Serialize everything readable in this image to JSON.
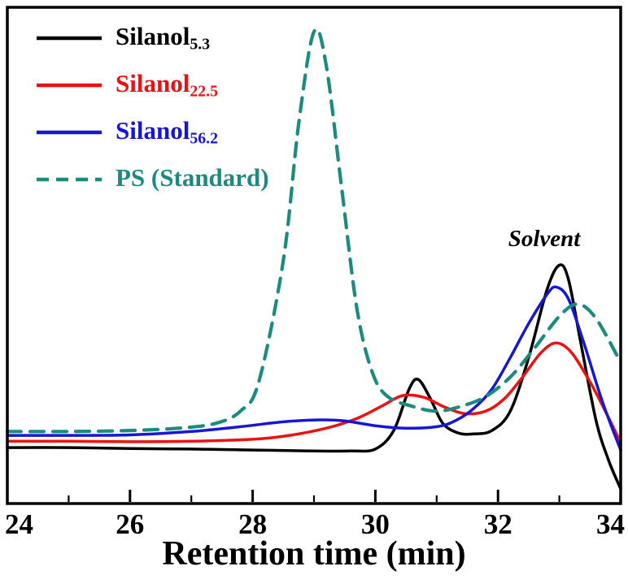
{
  "figure": {
    "background": "#ffffff",
    "frame_color": "#000000"
  },
  "chart_data": {
    "type": "line",
    "title": "",
    "xlabel": "Retention time (min)",
    "ylabel": "",
    "xlim": [
      24,
      34
    ],
    "ylim": [
      0,
      1.02
    ],
    "x_ticks": [
      24,
      26,
      28,
      30,
      32,
      34
    ],
    "x_minor_ticks": [
      25,
      27,
      29,
      31,
      33
    ],
    "grid": false,
    "legend_position": "top-left",
    "annotation": {
      "text": "Solvent",
      "x": 32.75,
      "y": 0.53
    },
    "series": [
      {
        "name": "Silanol",
        "subscript": "5.3",
        "color": "#000000",
        "style": "solid",
        "width": 3.5,
        "points": [
          [
            24,
            0.115
          ],
          [
            25,
            0.115
          ],
          [
            26,
            0.113
          ],
          [
            27,
            0.112
          ],
          [
            28,
            0.11
          ],
          [
            29,
            0.108
          ],
          [
            29.6,
            0.108
          ],
          [
            30.0,
            0.112
          ],
          [
            30.3,
            0.15
          ],
          [
            30.55,
            0.235
          ],
          [
            30.7,
            0.255
          ],
          [
            30.9,
            0.215
          ],
          [
            31.1,
            0.165
          ],
          [
            31.35,
            0.145
          ],
          [
            31.6,
            0.143
          ],
          [
            31.9,
            0.15
          ],
          [
            32.2,
            0.19
          ],
          [
            32.5,
            0.3
          ],
          [
            32.8,
            0.44
          ],
          [
            33.0,
            0.49
          ],
          [
            33.15,
            0.46
          ],
          [
            33.35,
            0.33
          ],
          [
            33.6,
            0.17
          ],
          [
            33.8,
            0.09
          ],
          [
            34,
            0.03
          ]
        ]
      },
      {
        "name": "Silanol",
        "subscript": "22.5",
        "color": "#ee1111",
        "style": "solid",
        "width": 3.5,
        "points": [
          [
            24,
            0.128
          ],
          [
            25,
            0.128
          ],
          [
            26,
            0.127
          ],
          [
            27,
            0.128
          ],
          [
            28,
            0.132
          ],
          [
            28.6,
            0.14
          ],
          [
            29.2,
            0.155
          ],
          [
            29.7,
            0.175
          ],
          [
            30.1,
            0.2
          ],
          [
            30.45,
            0.222
          ],
          [
            30.8,
            0.218
          ],
          [
            31.1,
            0.2
          ],
          [
            31.45,
            0.185
          ],
          [
            31.8,
            0.19
          ],
          [
            32.1,
            0.215
          ],
          [
            32.4,
            0.26
          ],
          [
            32.7,
            0.31
          ],
          [
            32.95,
            0.33
          ],
          [
            33.2,
            0.31
          ],
          [
            33.5,
            0.25
          ],
          [
            33.75,
            0.19
          ],
          [
            34,
            0.125
          ]
        ]
      },
      {
        "name": "Silanol",
        "subscript": "56.2",
        "color": "#1616d8",
        "style": "solid",
        "width": 3.5,
        "points": [
          [
            24,
            0.14
          ],
          [
            25,
            0.14
          ],
          [
            26,
            0.141
          ],
          [
            27,
            0.148
          ],
          [
            27.8,
            0.158
          ],
          [
            28.5,
            0.168
          ],
          [
            29.1,
            0.172
          ],
          [
            29.5,
            0.17
          ],
          [
            30,
            0.16
          ],
          [
            30.5,
            0.155
          ],
          [
            31,
            0.158
          ],
          [
            31.3,
            0.17
          ],
          [
            31.6,
            0.195
          ],
          [
            31.9,
            0.235
          ],
          [
            32.2,
            0.3
          ],
          [
            32.5,
            0.37
          ],
          [
            32.8,
            0.43
          ],
          [
            32.95,
            0.445
          ],
          [
            33.15,
            0.42
          ],
          [
            33.4,
            0.33
          ],
          [
            33.7,
            0.21
          ],
          [
            34,
            0.11
          ]
        ]
      },
      {
        "name": "PS (Standard)",
        "subscript": "",
        "color": "#1b8a7f",
        "style": "dashed",
        "width": 4.2,
        "points": [
          [
            24,
            0.148
          ],
          [
            25,
            0.148
          ],
          [
            26,
            0.15
          ],
          [
            26.8,
            0.155
          ],
          [
            27.4,
            0.165
          ],
          [
            27.8,
            0.19
          ],
          [
            28.1,
            0.25
          ],
          [
            28.5,
            0.5
          ],
          [
            28.75,
            0.78
          ],
          [
            29.0,
            0.97
          ],
          [
            29.2,
            0.9
          ],
          [
            29.45,
            0.65
          ],
          [
            29.7,
            0.4
          ],
          [
            29.95,
            0.27
          ],
          [
            30.2,
            0.22
          ],
          [
            30.6,
            0.2
          ],
          [
            31.0,
            0.19
          ],
          [
            31.4,
            0.2
          ],
          [
            31.8,
            0.22
          ],
          [
            32.2,
            0.26
          ],
          [
            32.6,
            0.32
          ],
          [
            33.0,
            0.385
          ],
          [
            33.3,
            0.41
          ],
          [
            33.6,
            0.38
          ],
          [
            34,
            0.29
          ]
        ]
      }
    ]
  }
}
